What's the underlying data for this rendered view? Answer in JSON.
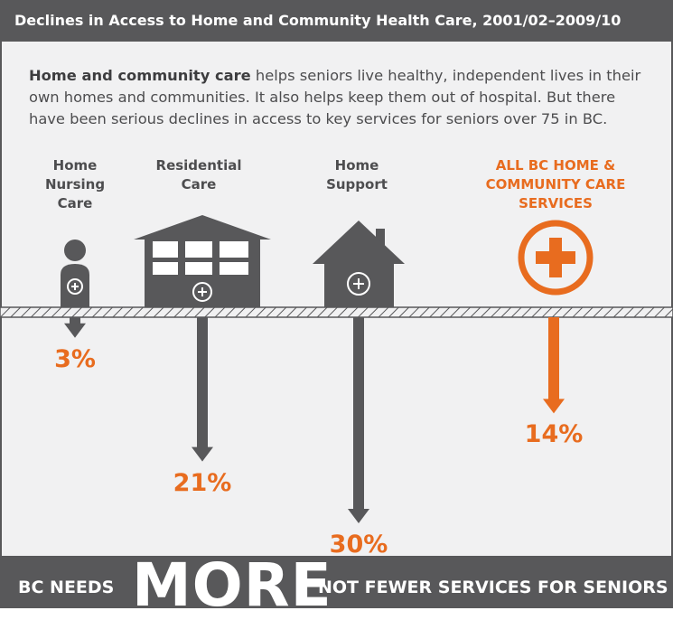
{
  "title": "Declines in Access to Home and Community Health Care, 2001/02–2009/10",
  "intro": {
    "bold": "Home and community care",
    "rest": " helps seniors live healthy, independent lives in their own homes and communities. It also helps keep them out of hospital. But there have been serious declines in access to key services for seniors over 75 in BC."
  },
  "categories": [
    {
      "lines": [
        "Home",
        "Nursing",
        "Care"
      ]
    },
    {
      "lines": [
        "Residential",
        "Care"
      ]
    },
    {
      "lines": [
        "Home",
        "Support"
      ]
    },
    {
      "lines": [
        "ALL BC HOME &",
        "COMMUNITY CARE",
        "SERVICES"
      ]
    }
  ],
  "chart_data": {
    "type": "bar",
    "categories": [
      "Home Nursing Care",
      "Residential Care",
      "Home Support",
      "All BC Home & Community Care Services"
    ],
    "values": [
      3,
      21,
      30,
      14
    ],
    "value_labels": [
      "3%",
      "21%",
      "30%",
      "14%"
    ],
    "title": "Declines in Access to Home and Community Health Care, 2001/02–2009/10",
    "direction": "downward"
  },
  "footer": {
    "left": "BC NEEDS",
    "big": "MORE",
    "right": "NOT FEWER SERVICES FOR SENIORS"
  },
  "colors": {
    "dark": "#58585a",
    "orange": "#e86c1f",
    "background": "#f1f1f2"
  }
}
